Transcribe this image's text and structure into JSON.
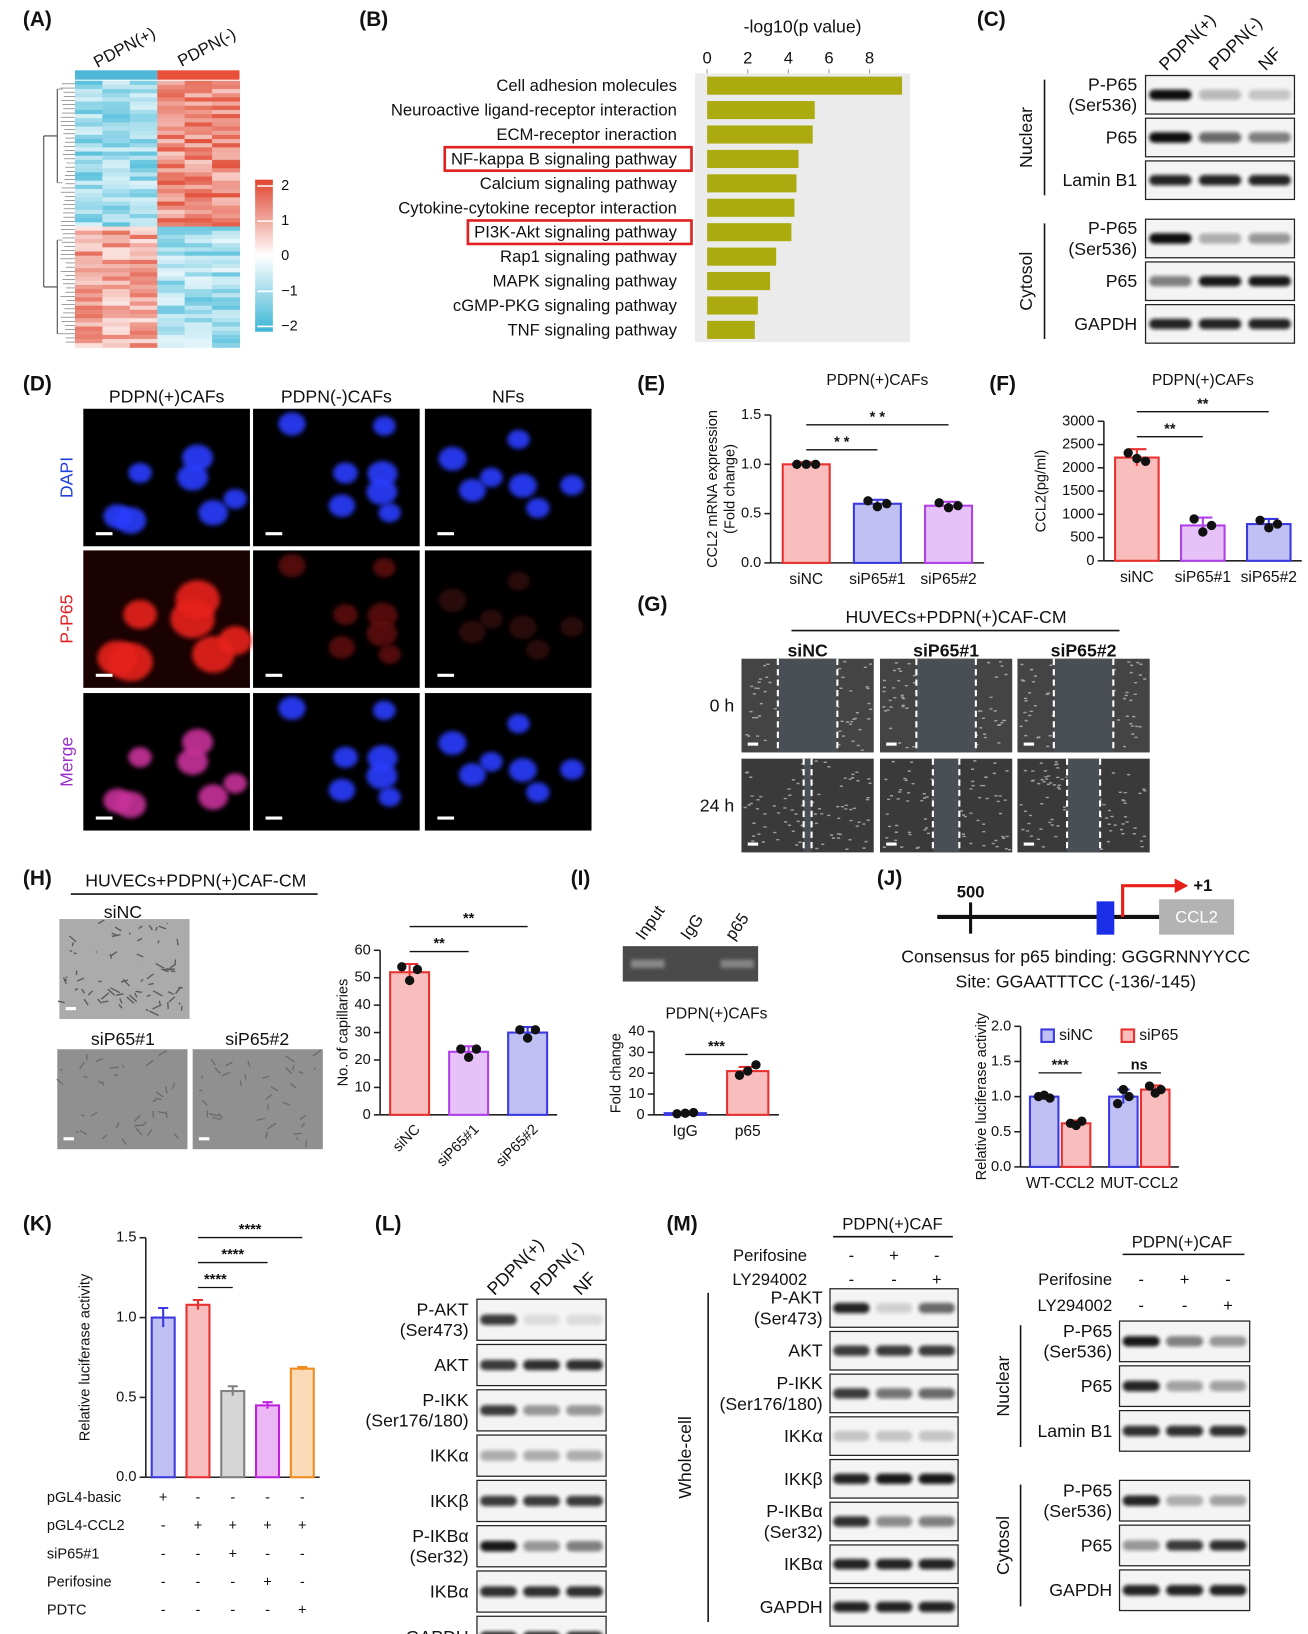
{
  "panel_labels": [
    "(A)",
    "(B)",
    "(C)",
    "(D)",
    "(E)",
    "(F)",
    "(G)",
    "(H)",
    "(I)",
    "(J)",
    "(K)",
    "(L)",
    "(M)"
  ],
  "heatmap": {
    "columns": [
      "PDPN(+)",
      "PDPN(-)"
    ],
    "column_colors": [
      "#4fb8d8",
      "#e8503a"
    ],
    "colorbar": {
      "lim": [
        -2.15,
        2.18
      ],
      "ticks": [
        2,
        1,
        0,
        {
          "value": -1,
          "label": "−1"
        },
        {
          "value": -2,
          "label": "−2"
        }
      ]
    }
  },
  "chart_data": [
    {
      "type": "hbar",
      "title": "-log10(p value)",
      "categories": [
        "Cell adhesion molecules",
        "Neuroactive ligand-receptor interaction",
        "ECM-receptor ineraction",
        "NF-kappa B signaling pathway",
        "Calcium signaling pathway",
        "Cytokine-cytokine receptor interaction",
        "PI3K-Akt signaling pathway",
        "Rap1 signaling pathway",
        "MAPK signaling pathway",
        "cGMP-PKG signaling pathway",
        "TNF signaling pathway"
      ],
      "values": [
        9.6,
        5.3,
        5.2,
        4.5,
        4.4,
        4.3,
        4.15,
        3.4,
        3.1,
        2.5,
        2.35
      ],
      "color": "#abab10",
      "xlim": [
        -0.6,
        10
      ],
      "xticks": [
        0,
        2,
        4,
        6,
        8
      ],
      "highlight": [
        3,
        6
      ],
      "highlight_color": "#e02020"
    },
    {
      "type": "bar",
      "title": "PDPN(+)CAFs",
      "ylabel": [
        "CCL2 mRNA expression",
        "(Fold change)"
      ],
      "categories": [
        "siNC",
        "siP65#1",
        "siP65#2"
      ],
      "values": [
        1.0,
        0.6,
        0.58
      ],
      "errors": [
        0.02,
        0.04,
        0.04
      ],
      "points": [
        [
          1.0,
          1.0,
          1.0
        ],
        [
          0.63,
          0.57,
          0.6
        ],
        [
          0.61,
          0.56,
          0.58
        ]
      ],
      "colors": [
        "#e8312f",
        "#3a3ae0",
        "#b040e8"
      ],
      "ylim": [
        0,
        1.5
      ],
      "yticks": [
        {
          "value": 0,
          "label": "0.0"
        },
        0.5,
        {
          "value": 1,
          "label": "1.0"
        },
        1.5
      ],
      "significance": [
        {
          "label": "* *",
          "pair": [
            0,
            1
          ]
        },
        {
          "label": "* *",
          "pair": [
            0,
            2
          ]
        }
      ]
    },
    {
      "type": "bar",
      "title": "PDPN(+)CAFs",
      "ylabel": "CCL2(pg/ml)",
      "categories": [
        "siNC",
        "siP65#1",
        "siP65#2"
      ],
      "values": [
        2220,
        760,
        790
      ],
      "errors": [
        180,
        170,
        110
      ],
      "points": [
        [
          2320,
          2200,
          2140
        ],
        [
          900,
          620,
          760
        ],
        [
          870,
          710,
          790
        ]
      ],
      "colors": [
        "#e8312f",
        "#b040e8",
        "#3a3ae0"
      ],
      "ylim": [
        0,
        3000
      ],
      "yticks": [
        0,
        500,
        1000,
        1500,
        2000,
        2500,
        3000
      ],
      "significance": [
        {
          "label": "**",
          "pair": [
            0,
            1
          ]
        },
        {
          "label": "**",
          "pair": [
            0,
            2
          ]
        }
      ]
    },
    {
      "type": "bar",
      "ylabel": "No. of capillaries",
      "categories": [
        "siNC",
        "siP65#1",
        "siP65#2"
      ],
      "xtick_rotation": -45,
      "values": [
        52,
        23,
        30
      ],
      "errors": [
        3,
        2,
        2
      ],
      "points": [
        [
          54,
          49,
          53
        ],
        [
          24,
          21,
          24
        ],
        [
          31,
          28,
          31
        ]
      ],
      "colors": [
        "#e8312f",
        "#b040e8",
        "#3a3ae0"
      ],
      "ylim": [
        0,
        60
      ],
      "yticks": [
        0,
        10,
        20,
        30,
        40,
        50,
        60
      ],
      "significance": [
        {
          "label": "**",
          "pair": [
            0,
            1
          ]
        },
        {
          "label": "**",
          "pair": [
            0,
            2
          ]
        }
      ]
    },
    {
      "type": "bar",
      "title": "PDPN(+)CAFs",
      "ylabel": "Fold change",
      "categories": [
        "IgG",
        "p65"
      ],
      "values": [
        0.8,
        21
      ],
      "errors": [
        0.3,
        2
      ],
      "points": [
        [
          0.5,
          0.8,
          1.1
        ],
        [
          19,
          21,
          24
        ]
      ],
      "colors": [
        "#3a3ae0",
        "#e8312f"
      ],
      "ylim": [
        0,
        40
      ],
      "yticks": [
        0,
        10,
        20,
        30,
        40
      ],
      "significance": [
        {
          "label": "***",
          "pair": [
            0,
            1
          ]
        }
      ]
    },
    {
      "type": "bar",
      "ylabel": "Relative luciferase activity",
      "legend": "upper left",
      "categories": [
        "WT-CCL2",
        "MUT-CCL2"
      ],
      "series": [
        {
          "name": "siNC",
          "color": "#3a3ae0",
          "values": [
            1.0,
            1.0
          ],
          "errors": [
            0.03,
            0.1
          ],
          "points": [
            [
              1.0,
              1.02,
              0.98
            ],
            [
              0.9,
              1.1,
              1.0
            ]
          ]
        },
        {
          "name": "siP65",
          "color": "#e8312f",
          "values": [
            0.62,
            1.1
          ],
          "errors": [
            0.04,
            0.06
          ],
          "points": [
            [
              0.62,
              0.59,
              0.65
            ],
            [
              1.15,
              1.05,
              1.1
            ]
          ]
        }
      ],
      "ylim": [
        0,
        2
      ],
      "yticks": [
        {
          "value": 0,
          "label": "0.0"
        },
        0.5,
        {
          "value": 1,
          "label": "1.0"
        },
        1.5,
        {
          "value": 2,
          "label": "2.0"
        }
      ],
      "significance": [
        {
          "label": "***",
          "group": 0
        },
        {
          "label": "ns",
          "group": 1
        }
      ]
    },
    {
      "type": "bar",
      "ylabel": "Relative luciferase activity",
      "categories": [
        null,
        null,
        null,
        null,
        null
      ],
      "values": [
        1.0,
        1.08,
        0.54,
        0.45,
        0.68
      ],
      "errors": [
        0.06,
        0.03,
        0.03,
        0.02,
        0.01
      ],
      "colors": [
        "#3a3ae0",
        "#e8312f",
        "#808080",
        "#c020e0",
        "#f08c20"
      ],
      "ylim": [
        0,
        1.5
      ],
      "yticks": [
        {
          "value": 0,
          "label": "0.0"
        },
        0.5,
        {
          "value": 1,
          "label": "1.0"
        },
        1.5
      ],
      "significance": [
        {
          "label": "****",
          "pair": [
            1,
            2
          ]
        },
        {
          "label": "****",
          "pair": [
            1,
            3
          ]
        },
        {
          "label": "****",
          "pair": [
            1,
            4
          ]
        }
      ],
      "conditions": [
        {
          "name": "pGL4-basic",
          "signs": [
            "+",
            "-",
            "-",
            "-",
            "-"
          ]
        },
        {
          "name": "pGL4-CCL2",
          "signs": [
            "-",
            "+",
            "+",
            "+",
            "+"
          ]
        },
        {
          "name": "siP65#1",
          "signs": [
            "-",
            "-",
            "+",
            "-",
            "-"
          ]
        },
        {
          "name": "Perifosine",
          "signs": [
            "-",
            "-",
            "-",
            "+",
            "-"
          ]
        },
        {
          "name": "PDTC",
          "signs": [
            "-",
            "-",
            "-",
            "-",
            "+"
          ]
        }
      ]
    }
  ],
  "blots": [
    {
      "lanes": [
        "PDPN(+)",
        "PDPN(-)",
        "NF"
      ],
      "groups": [
        {
          "name": "Nuclear",
          "rows": [
            [
              "P-P65",
              "(Ser536)"
            ],
            [
              "P65"
            ],
            [
              "Lamin B1"
            ]
          ]
        },
        {
          "name": "Cytosol",
          "rows": [
            [
              "P-P65",
              "(Ser536)"
            ],
            [
              "P65"
            ],
            [
              "GAPDH"
            ]
          ]
        }
      ]
    },
    {
      "lanes": [
        "PDPN(+)",
        "PDPN(-)",
        "NF"
      ],
      "groups": [
        {
          "rows": [
            [
              "P-AKT",
              "(Ser473)"
            ],
            [
              "AKT"
            ],
            [
              "P-IKK",
              "(Ser176/180)"
            ],
            [
              "IKKα"
            ],
            [
              "IKKβ"
            ],
            [
              "P-IKBα",
              "(Ser32)"
            ],
            [
              "IKBα"
            ],
            [
              "GAPDH"
            ]
          ]
        }
      ]
    },
    {
      "header": "PDPN(+)CAF",
      "conditions": [
        {
          "name": "Perifosine",
          "signs": [
            "-",
            "+",
            "-"
          ]
        },
        {
          "name": "LY294002",
          "signs": [
            "-",
            "-",
            "+"
          ]
        }
      ],
      "groups": [
        {
          "name": "Whole-cell",
          "rows": [
            [
              "P-AKT",
              "(Ser473)"
            ],
            [
              "AKT"
            ],
            [
              "P-IKK",
              "(Ser176/180)"
            ],
            [
              "IKKα"
            ],
            [
              "IKKβ"
            ],
            [
              "P-IKBα",
              "(Ser32)"
            ],
            [
              "IKBα"
            ],
            [
              "GAPDH"
            ]
          ]
        }
      ]
    },
    {
      "header": "PDPN(+)CAF",
      "conditions": [
        {
          "name": "Perifosine",
          "signs": [
            "-",
            "+",
            "-"
          ]
        },
        {
          "name": "LY294002",
          "signs": [
            "-",
            "-",
            "+"
          ]
        }
      ],
      "groups": [
        {
          "name": "Nuclear",
          "rows": [
            [
              "P-P65",
              "(Ser536)"
            ],
            [
              "P65"
            ],
            [
              "Lamin B1"
            ]
          ]
        },
        {
          "name": "Cytosol",
          "rows": [
            [
              "P-P65",
              "(Ser536)"
            ],
            [
              "P65"
            ],
            [
              "GAPDH"
            ]
          ]
        }
      ]
    }
  ],
  "microscopy": {
    "D": {
      "columns": [
        "PDPN(+)CAFs",
        "PDPN(-)CAFs",
        "NFs"
      ],
      "rows": [
        "DAPI",
        "P-P65",
        "Merge"
      ],
      "row_colors": [
        "#1f3fdc",
        "#e02020",
        "#9b2fc9"
      ]
    },
    "G": {
      "title": "HUVECs+PDPN(+)CAF-CM",
      "columns": [
        "siNC",
        "siP65#1",
        "siP65#2"
      ],
      "rows": [
        "0 h",
        "24 h"
      ]
    },
    "H": {
      "title": "HUVECs+PDPN(+)CAF-CM",
      "panels": [
        "siNC",
        "siP65#1",
        "siP65#2"
      ]
    }
  },
  "gel": {
    "lanes": [
      "Input",
      "IgG",
      "p65"
    ]
  },
  "promoter": {
    "position": "500",
    "tss": "+1",
    "gene": "CCL2",
    "consensus": "Consensus for p65 binding: GGGRNNYYCC",
    "site": "Site: GGAATTTCC (-136/-145)"
  }
}
